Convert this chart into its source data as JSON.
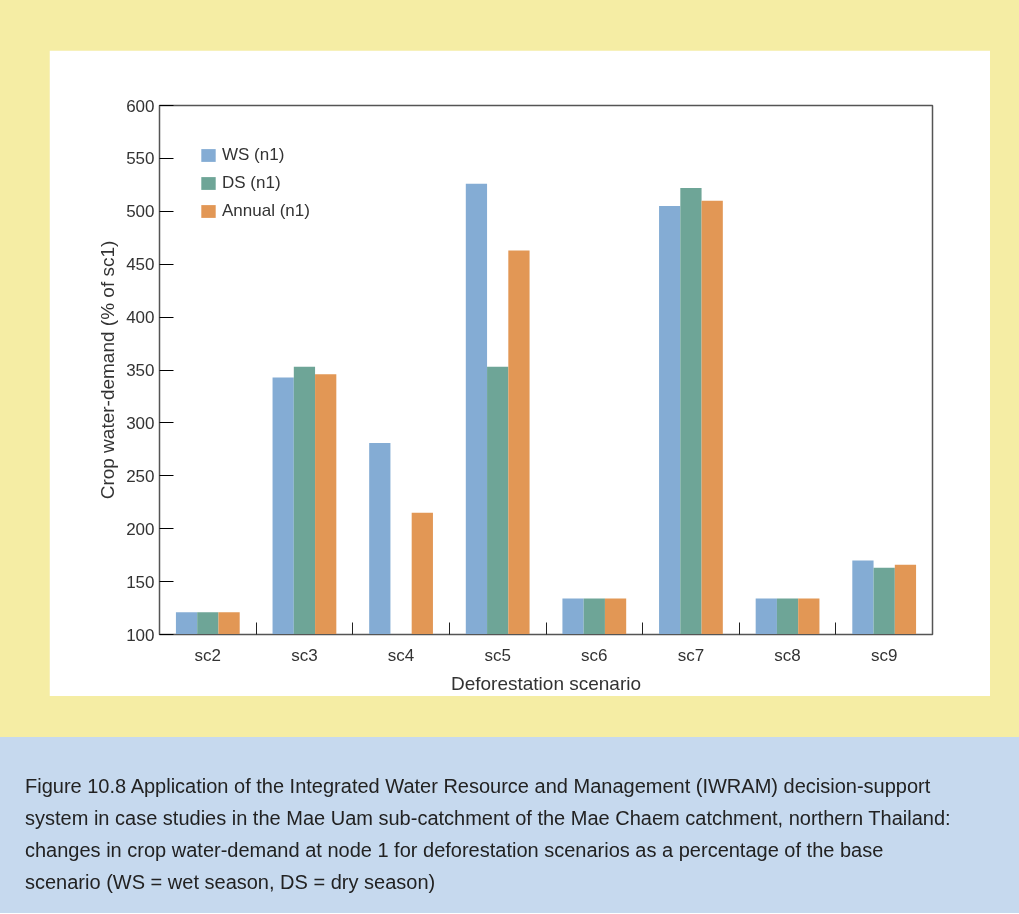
{
  "chart_data": {
    "type": "bar",
    "categories": [
      "sc2",
      "sc3",
      "sc4",
      "sc5",
      "sc6",
      "sc7",
      "sc8",
      "sc9"
    ],
    "series": [
      {
        "name": "WS (n1)",
        "color": "#84acd4",
        "values": [
          121,
          343,
          281,
          526,
          134,
          505,
          134,
          170
        ]
      },
      {
        "name": "DS (n1)",
        "color": "#6ea597",
        "values": [
          121,
          353,
          null,
          353,
          134,
          522,
          134,
          163
        ]
      },
      {
        "name": "Annual (n1)",
        "color": "#e29755",
        "values": [
          121,
          346,
          215,
          463,
          134,
          510,
          134,
          166
        ]
      }
    ],
    "xlabel": "Deforestation scenario",
    "ylabel": "Crop water-demand (% of sc1)",
    "ylim": [
      100,
      600
    ],
    "yticks": [
      100,
      150,
      200,
      250,
      300,
      350,
      400,
      450,
      500,
      550,
      600
    ],
    "grid": false,
    "legend": "top left",
    "annotations": [
      "Figure 10.8 Application of the Integrated Water Resource and Management (IWRAM) decision-support system in case studies in the Mae Uam sub-catchment of the Mae Chaem catchment, northern Thailand: changes in crop water-demand at node 1 for deforestation scenarios as a percentage of the base scenario (WS = wet season, DS = dry season)"
    ]
  }
}
